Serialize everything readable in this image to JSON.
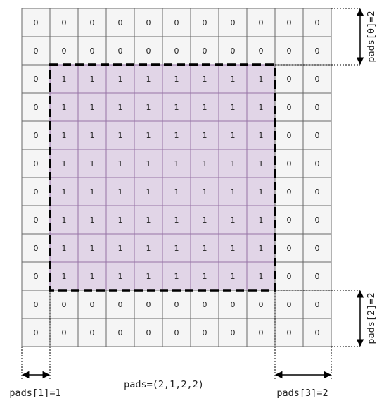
{
  "grid": {
    "rows": 12,
    "cols": 11,
    "outer_value": "0",
    "inner_value": "1",
    "inner_region": {
      "row_start": 2,
      "row_end": 9,
      "col_start": 1,
      "col_end": 8
    },
    "colors": {
      "outer_fill": "#f5f5f5",
      "outer_stroke": "#666666",
      "inner_fill": "#e1d5e7",
      "inner_stroke": "#9673a6",
      "dashed_border": "#000000"
    }
  },
  "labels": {
    "pads_total": "pads=(2,1,2,2)",
    "pads_0": "pads[0]=2",
    "pads_1": "pads[1]=1",
    "pads_2": "pads[2]=2",
    "pads_3": "pads[3]=2"
  }
}
